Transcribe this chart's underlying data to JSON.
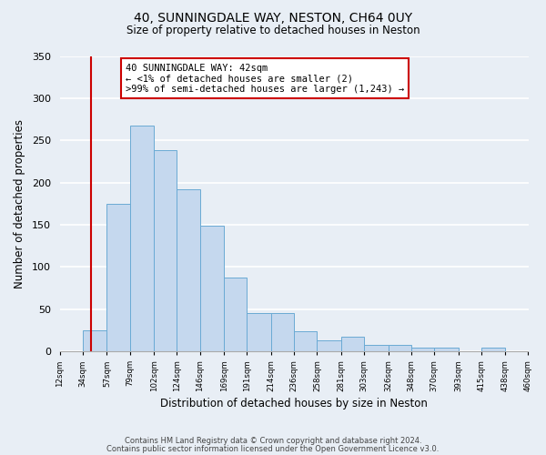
{
  "title": "40, SUNNINGDALE WAY, NESTON, CH64 0UY",
  "subtitle": "Size of property relative to detached houses in Neston",
  "xlabel": "Distribution of detached houses by size in Neston",
  "ylabel": "Number of detached properties",
  "bar_color": "#c5d8ee",
  "bar_edge_color": "#6aaad4",
  "bar_heights": [
    0,
    25,
    175,
    268,
    238,
    192,
    149,
    88,
    45,
    45,
    24,
    13,
    17,
    8,
    8,
    5,
    5,
    0,
    5,
    0
  ],
  "bin_edges": [
    12,
    34,
    57,
    79,
    102,
    124,
    146,
    169,
    191,
    214,
    236,
    258,
    281,
    303,
    326,
    348,
    370,
    393,
    415,
    438,
    460
  ],
  "x_tick_labels": [
    "12sqm",
    "34sqm",
    "57sqm",
    "79sqm",
    "102sqm",
    "124sqm",
    "146sqm",
    "169sqm",
    "191sqm",
    "214sqm",
    "236sqm",
    "258sqm",
    "281sqm",
    "303sqm",
    "326sqm",
    "348sqm",
    "370sqm",
    "393sqm",
    "415sqm",
    "438sqm",
    "460sqm"
  ],
  "ylim": [
    0,
    350
  ],
  "yticks": [
    0,
    50,
    100,
    150,
    200,
    250,
    300,
    350
  ],
  "property_line_x": 42,
  "annotation_line1": "40 SUNNINGDALE WAY: 42sqm",
  "annotation_line2": "← <1% of detached houses are smaller (2)",
  "annotation_line3": ">99% of semi-detached houses are larger (1,243) →",
  "annotation_box_color": "#ffffff",
  "annotation_box_edge_color": "#cc0000",
  "red_line_color": "#cc0000",
  "footer_line1": "Contains HM Land Registry data © Crown copyright and database right 2024.",
  "footer_line2": "Contains public sector information licensed under the Open Government Licence v3.0.",
  "background_color": "#e8eef5",
  "plot_bg_color": "#e8eef5",
  "grid_color": "#ffffff"
}
